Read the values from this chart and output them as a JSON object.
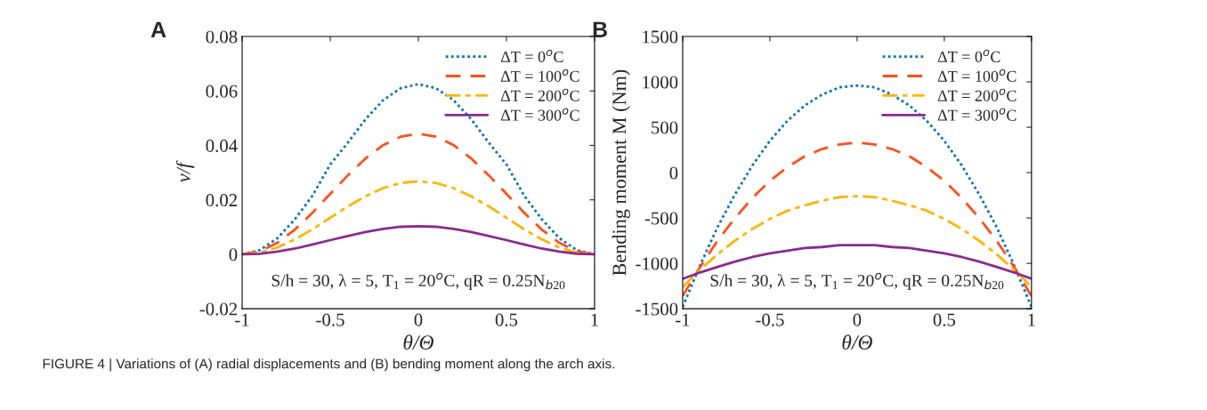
{
  "chart_data": [
    {
      "type": "line",
      "title": "A",
      "xlabel": "θ/Θ",
      "ylabel": "v/f",
      "xlim": [
        -1,
        1
      ],
      "xticks": [
        -1,
        -0.5,
        0,
        0.5,
        1
      ],
      "ylim": [
        -0.02,
        0.08
      ],
      "yticks": [
        -0.02,
        0,
        0.02,
        0.04,
        0.06,
        0.08
      ],
      "grid": false,
      "legend": "top right",
      "x": [
        -1,
        -0.9,
        -0.8,
        -0.7,
        -0.6,
        -0.5,
        -0.4,
        -0.3,
        -0.2,
        -0.1,
        0,
        0.1,
        0.2,
        0.3,
        0.4,
        0.5,
        0.6,
        0.7,
        0.8,
        0.9,
        1
      ],
      "series": [
        {
          "name": "ΔT = 0$^{o}$C",
          "color": "#0072bd",
          "line_style": "dotted",
          "values": [
            0,
            0.0015,
            0.0059,
            0.0129,
            0.0216,
            0.033,
            0.041,
            0.0496,
            0.0566,
            0.061,
            0.0625,
            0.061,
            0.0566,
            0.0496,
            0.041,
            0.033,
            0.0216,
            0.0129,
            0.0059,
            0.0015,
            0
          ]
        },
        {
          "name": "ΔT = 100$^{o}$C",
          "color": "#ff4f1a",
          "line_style": "dashed",
          "values": [
            0,
            0.0011,
            0.0042,
            0.0091,
            0.0153,
            0.0222,
            0.029,
            0.0352,
            0.0401,
            0.0432,
            0.0443,
            0.0432,
            0.0401,
            0.0352,
            0.029,
            0.0222,
            0.0153,
            0.0091,
            0.0042,
            0.0011,
            0
          ]
        },
        {
          "name": "ΔT = 200$^{o}$C",
          "color": "#ffb300",
          "line_style": "dashdot",
          "values": [
            0,
            0.0006,
            0.0025,
            0.0055,
            0.0092,
            0.0134,
            0.0176,
            0.0213,
            0.0243,
            0.0262,
            0.0268,
            0.0262,
            0.0243,
            0.0213,
            0.0176,
            0.0134,
            0.0092,
            0.0055,
            0.0025,
            0.0006,
            0
          ]
        },
        {
          "name": "ΔT = 300$^{o}$C",
          "color": "#8b2a8f",
          "line_style": "solid",
          "values": [
            0,
            0.0002,
            0.001,
            0.0021,
            0.0036,
            0.0052,
            0.0067,
            0.0082,
            0.0093,
            0.0101,
            0.0103,
            0.0101,
            0.0093,
            0.0082,
            0.0067,
            0.0052,
            0.0036,
            0.0021,
            0.001,
            0.0002,
            0
          ]
        }
      ],
      "annotations": [
        "S/h = 30, λ = 5, T$_{1}$ = 20$^{o}$C, qR = 0.25N$_{b20}$",
        "FIGURE 4 | Variations of (A) radial displacements and (B) bending moment along the arch axis."
      ]
    },
    {
      "type": "line",
      "title": "B",
      "xlabel": "θ/Θ",
      "ylabel": "Bending moment M (Nm)",
      "xlim": [
        -1,
        1
      ],
      "xticks": [
        -1,
        -0.5,
        0,
        0.5,
        1
      ],
      "ylim": [
        -1500,
        1500
      ],
      "yticks": [
        -1500,
        -1000,
        -500,
        0,
        500,
        1000,
        1500
      ],
      "grid": false,
      "legend": "top right",
      "x": [
        -1,
        -0.9,
        -0.8,
        -0.7,
        -0.6,
        -0.5,
        -0.4,
        -0.3,
        -0.2,
        -0.1,
        0,
        0.1,
        0.2,
        0.3,
        0.4,
        0.5,
        0.6,
        0.7,
        0.8,
        0.9,
        1
      ],
      "series": [
        {
          "name": "ΔT = 0$^{o}$C",
          "color": "#0072bd",
          "line_style": "dotted",
          "values": [
            -1480,
            -1020,
            -600,
            -240,
            80,
            350,
            570,
            740,
            860,
            940,
            960,
            940,
            860,
            740,
            570,
            350,
            80,
            -240,
            -600,
            -1020,
            -1480
          ]
        },
        {
          "name": "ΔT = 100$^{o}$C",
          "color": "#ff4f1a",
          "line_style": "dashed",
          "values": [
            -1360,
            -1040,
            -750,
            -500,
            -280,
            -90,
            60,
            180,
            260,
            310,
            330,
            310,
            260,
            180,
            60,
            -90,
            -280,
            -500,
            -750,
            -1040,
            -1360
          ]
        },
        {
          "name": "ΔT = 200$^{o}$C",
          "color": "#ffb300",
          "line_style": "dashdot",
          "values": [
            -1260,
            -1070,
            -900,
            -750,
            -620,
            -510,
            -420,
            -360,
            -310,
            -270,
            -260,
            -270,
            -310,
            -360,
            -420,
            -510,
            -620,
            -750,
            -900,
            -1070,
            -1260
          ]
        },
        {
          "name": "ΔT = 300$^{o}$C",
          "color": "#8b2a8f",
          "line_style": "solid",
          "values": [
            -1170,
            -1100,
            -1040,
            -980,
            -930,
            -890,
            -860,
            -830,
            -820,
            -800,
            -800,
            -800,
            -820,
            -830,
            -860,
            -890,
            -930,
            -980,
            -1040,
            -1100,
            -1170
          ]
        }
      ],
      "annotations": [
        "S/h = 30, λ = 5, T$_{1}$ = 20$^{o}$C, qR = 0.25N$_{b20}$"
      ]
    }
  ]
}
